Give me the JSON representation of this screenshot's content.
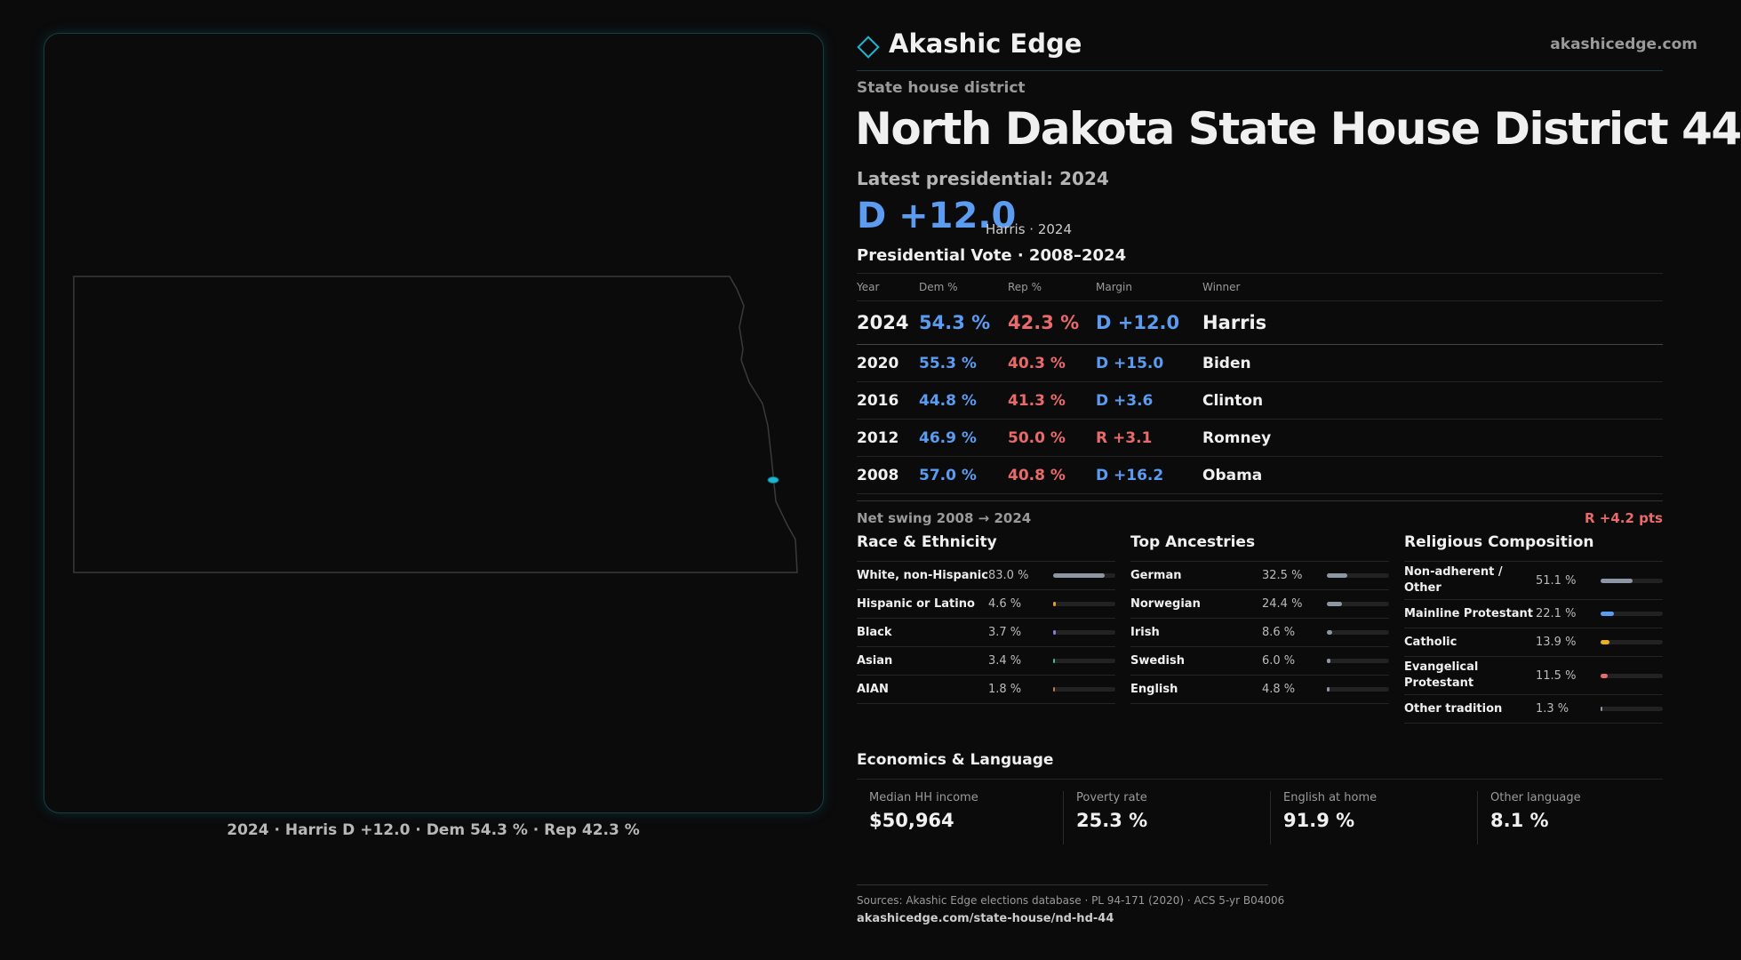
{
  "header": {
    "brand": "Akashic Edge",
    "site": "akashicedge.com"
  },
  "kicker": "State house district",
  "title": "North Dakota State House District 44",
  "latest": {
    "label": "Latest presidential: 2024",
    "margin": "D +12.0",
    "note": "Harris · 2024"
  },
  "map": {
    "caption": "2024 · Harris D +12.0 · Dem 54.3 % · Rep 42.3 %"
  },
  "vote_table": {
    "title": "Presidential Vote · 2008–2024",
    "columns": [
      "Year",
      "Dem %",
      "Rep %",
      "Margin",
      "Winner"
    ],
    "rows": [
      [
        "2024",
        "54.3 %",
        "42.3 %",
        "D +12.0",
        "Harris"
      ],
      [
        "2020",
        "55.3 %",
        "40.3 %",
        "D +15.0",
        "Biden"
      ],
      [
        "2016",
        "44.8 %",
        "41.3 %",
        "D +3.6",
        "Clinton"
      ],
      [
        "2012",
        "46.9 %",
        "50.0 %",
        "R +3.1",
        "Romney"
      ],
      [
        "2008",
        "57.0 %",
        "40.8 %",
        "D +16.2",
        "Obama"
      ]
    ]
  },
  "swing": {
    "label": "Net swing 2008 → 2024",
    "value": "R +4.2 pts"
  },
  "demographics": [
    {
      "title": "Race & Ethnicity",
      "xlim": [
        0,
        100
      ],
      "items": [
        {
          "name": "White, non-Hispanic",
          "value": 83.0,
          "value_label": "83.0 %",
          "color": "#8d96a5"
        },
        {
          "name": "Hispanic or Latino",
          "value": 4.6,
          "value_label": "4.6 %",
          "color": "#e0a030"
        },
        {
          "name": "Black",
          "value": 3.7,
          "value_label": "3.7 %",
          "color": "#8a7ae0"
        },
        {
          "name": "Asian",
          "value": 3.4,
          "value_label": "3.4 %",
          "color": "#3cbf8a"
        },
        {
          "name": "AIAN",
          "value": 1.8,
          "value_label": "1.8 %",
          "color": "#c87a40"
        }
      ]
    },
    {
      "title": "Top Ancestries",
      "xlim": [
        0,
        100
      ],
      "items": [
        {
          "name": "German",
          "value": 32.5,
          "value_label": "32.5 %",
          "color": "#8d96a5"
        },
        {
          "name": "Norwegian",
          "value": 24.4,
          "value_label": "24.4 %",
          "color": "#8d96a5"
        },
        {
          "name": "Irish",
          "value": 8.6,
          "value_label": "8.6 %",
          "color": "#8d96a5"
        },
        {
          "name": "Swedish",
          "value": 6.0,
          "value_label": "6.0 %",
          "color": "#8d96a5"
        },
        {
          "name": "English",
          "value": 4.8,
          "value_label": "4.8 %",
          "color": "#8d96a5"
        }
      ]
    },
    {
      "title": "Religious Composition",
      "xlim": [
        0,
        100
      ],
      "items": [
        {
          "name": "Non-adherent / Other",
          "value": 51.1,
          "value_label": "51.1 %",
          "color": "#8d96a5"
        },
        {
          "name": "Mainline Protestant",
          "value": 22.1,
          "value_label": "22.1 %",
          "color": "#5b9bf0"
        },
        {
          "name": "Catholic",
          "value": 13.9,
          "value_label": "13.9 %",
          "color": "#e8b020"
        },
        {
          "name": "Evangelical Protestant",
          "value": 11.5,
          "value_label": "11.5 %",
          "color": "#e86a6a"
        },
        {
          "name": "Other tradition",
          "value": 1.3,
          "value_label": "1.3 %",
          "color": "#8d96a5"
        }
      ]
    }
  ],
  "economics": {
    "title": "Economics & Language",
    "items": [
      {
        "label": "Median HH income",
        "value": "$50,964"
      },
      {
        "label": "Poverty rate",
        "value": "25.3 %"
      },
      {
        "label": "English at home",
        "value": "91.9 %"
      },
      {
        "label": "Other language",
        "value": "8.1 %"
      }
    ]
  },
  "footer": {
    "sources": "Sources: Akashic Edge elections database · PL 94-171 (2020) · ACS 5-yr B04006",
    "url": "akashicedge.com/state-house/nd-hd-44"
  }
}
